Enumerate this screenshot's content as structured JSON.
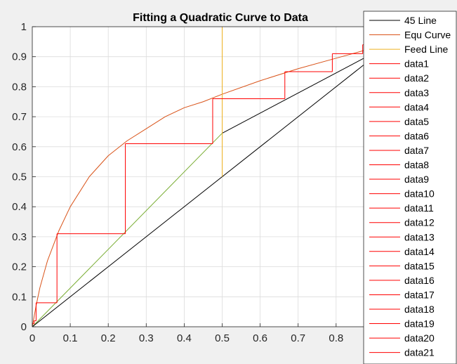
{
  "chart_data": {
    "type": "line",
    "title": "Fitting a Quadratic Curve to Data",
    "xlabel": "",
    "ylabel": "",
    "xlim": [
      0,
      1
    ],
    "ylim": [
      0,
      1
    ],
    "x_ticks": [
      0,
      0.1,
      0.2,
      0.3,
      0.4,
      0.5,
      0.6,
      0.7,
      0.8
    ],
    "y_ticks": [
      0,
      0.1,
      0.2,
      0.3,
      0.4,
      0.5,
      0.6,
      0.7,
      0.8,
      0.9,
      1
    ],
    "grid": true,
    "legend_position": "top-right",
    "series": [
      {
        "name": "45 Line",
        "color": "#000000",
        "x": [
          0,
          1
        ],
        "y": [
          0,
          1
        ]
      },
      {
        "name": "Equ Curve",
        "color": "#d95319",
        "x": [
          0,
          0.01,
          0.02,
          0.04,
          0.07,
          0.1,
          0.15,
          0.2,
          0.25,
          0.3,
          0.35,
          0.4,
          0.45,
          0.5,
          0.6,
          0.7,
          0.8,
          0.9,
          1
        ],
        "y": [
          0,
          0.07,
          0.13,
          0.22,
          0.32,
          0.4,
          0.5,
          0.57,
          0.62,
          0.66,
          0.7,
          0.73,
          0.75,
          0.775,
          0.82,
          0.86,
          0.895,
          0.93,
          0.97
        ]
      },
      {
        "name": "Feed Line",
        "color": "#edb120",
        "x": [
          0.5,
          0.5
        ],
        "y": [
          0.5,
          1
        ]
      },
      {
        "name": "data1",
        "color": "#ff0000",
        "x": [
          0.0,
          0.0
        ],
        "y": [
          0.0,
          0.01
        ]
      },
      {
        "name": "data2",
        "color": "#ff0000",
        "x": [
          0.0,
          0.005
        ],
        "y": [
          0.01,
          0.01
        ]
      },
      {
        "name": "data3",
        "color": "#ff0000",
        "x": [
          0.005,
          0.005
        ],
        "y": [
          0.01,
          0.02
        ]
      },
      {
        "name": "data4",
        "color": "#ff0000",
        "x": [
          0.005,
          0.01
        ],
        "y": [
          0.02,
          0.02
        ]
      },
      {
        "name": "data5",
        "color": "#ff0000",
        "x": [
          0.01,
          0.01
        ],
        "y": [
          0.02,
          0.08
        ]
      },
      {
        "name": "data6",
        "color": "#ff0000",
        "x": [
          0.01,
          0.065
        ],
        "y": [
          0.08,
          0.08
        ]
      },
      {
        "name": "data7",
        "color": "#ff0000",
        "x": [
          0.065,
          0.065
        ],
        "y": [
          0.08,
          0.31
        ]
      },
      {
        "name": "data8",
        "color": "#ff0000",
        "x": [
          0.065,
          0.245
        ],
        "y": [
          0.31,
          0.31
        ]
      },
      {
        "name": "data9",
        "color": "#ff0000",
        "x": [
          0.245,
          0.245
        ],
        "y": [
          0.31,
          0.61
        ]
      },
      {
        "name": "data10",
        "color": "#ff0000",
        "x": [
          0.245,
          0.475
        ],
        "y": [
          0.61,
          0.61
        ]
      },
      {
        "name": "data11",
        "color": "#ff0000",
        "x": [
          0.475,
          0.475
        ],
        "y": [
          0.61,
          0.76
        ]
      },
      {
        "name": "data12",
        "color": "#ff0000",
        "x": [
          0.475,
          0.665
        ],
        "y": [
          0.76,
          0.76
        ]
      },
      {
        "name": "data13",
        "color": "#ff0000",
        "x": [
          0.665,
          0.665
        ],
        "y": [
          0.76,
          0.85
        ]
      },
      {
        "name": "data14",
        "color": "#ff0000",
        "x": [
          0.665,
          0.79
        ],
        "y": [
          0.85,
          0.85
        ]
      },
      {
        "name": "data15",
        "color": "#ff0000",
        "x": [
          0.79,
          0.79
        ],
        "y": [
          0.85,
          0.91
        ]
      },
      {
        "name": "data16",
        "color": "#ff0000",
        "x": [
          0.79,
          0.87
        ],
        "y": [
          0.91,
          0.91
        ]
      },
      {
        "name": "data17",
        "color": "#ff0000",
        "x": [
          0.87,
          0.87
        ],
        "y": [
          0.91,
          0.94
        ]
      },
      {
        "name": "data18",
        "color": "#ff0000",
        "x": [
          0.87,
          0.92
        ],
        "y": [
          0.94,
          0.94
        ]
      },
      {
        "name": "data19",
        "color": "#ff0000",
        "x": [
          0.92,
          0.92
        ],
        "y": [
          0.94,
          0.96
        ]
      },
      {
        "name": "data20",
        "color": "#ff0000",
        "x": [
          0.92,
          0.95
        ],
        "y": [
          0.96,
          0.96
        ]
      },
      {
        "name": "data21",
        "color": "#ff0000",
        "x": [
          0.95,
          0.95
        ],
        "y": [
          0.96,
          0.98
        ]
      }
    ],
    "extra_lines": [
      {
        "color": "#77ac30",
        "x": [
          0,
          0.5
        ],
        "y": [
          0,
          0.645
        ]
      },
      {
        "color": "#000000",
        "x": [
          0.5,
          1
        ],
        "y": [
          0.645,
          0.98
        ]
      }
    ]
  }
}
